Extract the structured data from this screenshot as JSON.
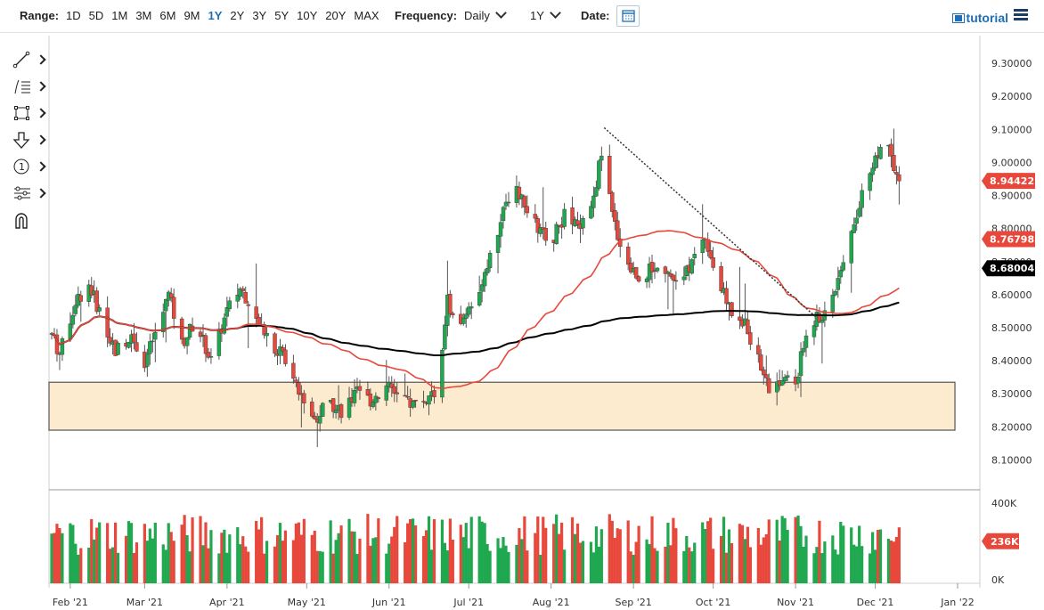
{
  "toolbar": {
    "range_label": "Range:",
    "ranges": [
      "1D",
      "5D",
      "1M",
      "3M",
      "6M",
      "9M",
      "1Y",
      "2Y",
      "3Y",
      "5Y",
      "10Y",
      "20Y",
      "MAX"
    ],
    "active_range": "1Y",
    "frequency_label": "Frequency:",
    "frequency_value": "Daily",
    "period_value": "1Y",
    "date_label": "Date:",
    "tutorial_label": "tutorial"
  },
  "tools": [
    "line-tool-icon",
    "fibonacci-tool-icon",
    "rectangle-tool-icon",
    "arrow-tool-icon",
    "counter-tool-icon",
    "measure-tool-icon",
    "magnet-tool-icon"
  ],
  "chart_data": {
    "type": "candlestick",
    "x_tick_labels": [
      "Feb '21",
      "Mar '21",
      "Apr '21",
      "May '21",
      "Jun '21",
      "Jul '21",
      "Aug '21",
      "Sep '21",
      "Oct '21",
      "Nov '21",
      "Dec '21",
      "Jan '22"
    ],
    "y_tick_labels": [
      "8.10000",
      "8.20000",
      "8.30000",
      "8.40000",
      "8.50000",
      "8.60000",
      "8.70000",
      "8.80000",
      "8.90000",
      "9.00000",
      "9.10000",
      "9.20000",
      "9.30000"
    ],
    "ylim": [
      8.05,
      9.33
    ],
    "price_anchors": [
      [
        "2021-01-25",
        8.48
      ],
      [
        "2021-01-28",
        8.42
      ],
      [
        "2021-02-03",
        8.58
      ],
      [
        "2021-02-08",
        8.63
      ],
      [
        "2021-02-12",
        8.55
      ],
      [
        "2021-02-18",
        8.43
      ],
      [
        "2021-02-24",
        8.48
      ],
      [
        "2021-03-01",
        8.4
      ],
      [
        "2021-03-05",
        8.48
      ],
      [
        "2021-03-10",
        8.6
      ],
      [
        "2021-03-15",
        8.45
      ],
      [
        "2021-03-20",
        8.52
      ],
      [
        "2021-03-26",
        8.4
      ],
      [
        "2021-04-01",
        8.55
      ],
      [
        "2021-04-06",
        8.62
      ],
      [
        "2021-04-12",
        8.55
      ],
      [
        "2021-04-18",
        8.45
      ],
      [
        "2021-04-24",
        8.4
      ],
      [
        "2021-04-29",
        8.3
      ],
      [
        "2021-05-04",
        8.22
      ],
      [
        "2021-05-09",
        8.28
      ],
      [
        "2021-05-14",
        8.25
      ],
      [
        "2021-05-20",
        8.3
      ],
      [
        "2021-05-25",
        8.28
      ],
      [
        "2021-05-31",
        8.32
      ],
      [
        "2021-06-05",
        8.3
      ],
      [
        "2021-06-10",
        8.27
      ],
      [
        "2021-06-15",
        8.28
      ],
      [
        "2021-06-20",
        8.33
      ],
      [
        "2021-06-23",
        8.58
      ],
      [
        "2021-06-28",
        8.5
      ],
      [
        "2021-07-03",
        8.58
      ],
      [
        "2021-07-08",
        8.7
      ],
      [
        "2021-07-13",
        8.82
      ],
      [
        "2021-07-18",
        8.95
      ],
      [
        "2021-07-22",
        8.86
      ],
      [
        "2021-07-27",
        8.8
      ],
      [
        "2021-08-01",
        8.76
      ],
      [
        "2021-08-06",
        8.84
      ],
      [
        "2021-08-11",
        8.8
      ],
      [
        "2021-08-16",
        8.85
      ],
      [
        "2021-08-20",
        9.03
      ],
      [
        "2021-08-24",
        8.84
      ],
      [
        "2021-08-29",
        8.7
      ],
      [
        "2021-09-03",
        8.65
      ],
      [
        "2021-09-08",
        8.68
      ],
      [
        "2021-09-13",
        8.68
      ],
      [
        "2021-09-18",
        8.62
      ],
      [
        "2021-09-23",
        8.7
      ],
      [
        "2021-09-28",
        8.78
      ],
      [
        "2021-10-03",
        8.63
      ],
      [
        "2021-10-08",
        8.55
      ],
      [
        "2021-10-13",
        8.52
      ],
      [
        "2021-10-18",
        8.4
      ],
      [
        "2021-10-23",
        8.3
      ],
      [
        "2021-10-28",
        8.35
      ],
      [
        "2021-11-01",
        8.33
      ],
      [
        "2021-11-06",
        8.52
      ],
      [
        "2021-11-11",
        8.53
      ],
      [
        "2021-11-16",
        8.62
      ],
      [
        "2021-11-21",
        8.78
      ],
      [
        "2021-11-26",
        8.9
      ],
      [
        "2021-12-01",
        9.02
      ],
      [
        "2021-12-06",
        9.06
      ],
      [
        "2021-12-10",
        8.92
      ],
      [
        "2021-12-12",
        8.94
      ]
    ],
    "last_price": "8.94422",
    "ma_fast_value": "8.76798",
    "ma_slow_value": "8.68004",
    "volume_tick_labels": [
      "400K",
      "0K"
    ],
    "last_volume": "236K",
    "support_zone": {
      "from_date": "2021-01-25",
      "to_date": "2021-12-31",
      "low": 8.19,
      "high": 8.335
    },
    "trendline": {
      "start": [
        "2021-08-21",
        9.105
      ],
      "end": [
        "2021-11-09",
        8.53
      ]
    },
    "colors": {
      "up": "#1fa84f",
      "down": "#e8483b",
      "ma_fast": "#e8483b",
      "ma_slow": "#000000",
      "zone_fill": "#fdebd0",
      "zone_border": "#555555",
      "last_tag": "#e8483b",
      "slow_tag": "#000000"
    }
  }
}
